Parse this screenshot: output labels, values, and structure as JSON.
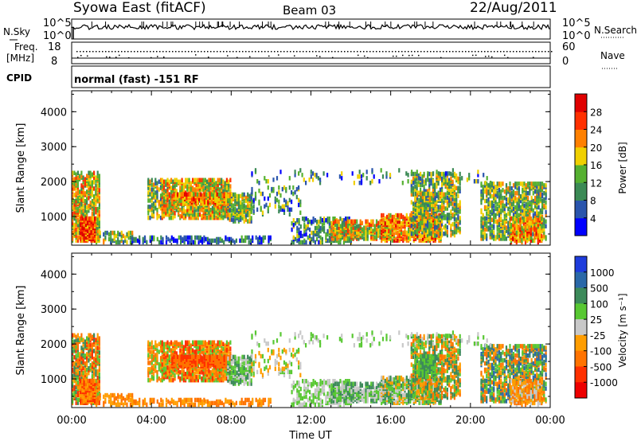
{
  "header": {
    "left": "Syowa East (fitACF)",
    "center": "Beam 03",
    "right": "22/Aug/2011"
  },
  "nsky_panel": {
    "left_label": "N.Sky",
    "tick_top": "10^5",
    "tick_bottom": "10^0",
    "right_label": "N.Search",
    "right_tick_top": "10^5",
    "right_tick_bottom": "10^0"
  },
  "freq_panel": {
    "left_label_1": "Freq.",
    "left_label_2": "[MHz]",
    "tick_top": "18",
    "tick_bottom": "8",
    "right_label": "Nave",
    "right_tick_top": "60",
    "right_tick_bottom": "0"
  },
  "cpid_panel": {
    "left_label": "CPID",
    "text": "normal (fast) -151 RF"
  },
  "chart_data": [
    {
      "type": "heatmap",
      "panel": "power",
      "ylabel": "Slant Range [km]",
      "xlabel": "",
      "ylim": [
        180,
        4600
      ],
      "y_ticks": [
        "1000",
        "2000",
        "3000",
        "4000"
      ],
      "x_ticks": [
        "00:00",
        "04:00",
        "08:00",
        "12:00",
        "16:00",
        "20:00",
        "00:00"
      ],
      "colorbar": {
        "label": "Power [dB]",
        "ticks": [
          "4",
          "8",
          "12",
          "16",
          "20",
          "24",
          "28"
        ],
        "colors": [
          "#0000ff",
          "#2a55ad",
          "#3b8a55",
          "#55b030",
          "#f0d000",
          "#ff8000",
          "#ff3000",
          "#e00000"
        ]
      }
    },
    {
      "type": "heatmap",
      "panel": "velocity",
      "ylabel": "Slant Range [km]",
      "xlabel": "Time UT",
      "ylim": [
        180,
        4600
      ],
      "y_ticks": [
        "1000",
        "2000",
        "3000",
        "4000"
      ],
      "x_ticks": [
        "00:00",
        "04:00",
        "08:00",
        "12:00",
        "16:00",
        "20:00",
        "00:00"
      ],
      "colorbar": {
        "label": "Velocity [m s⁻¹]",
        "ticks": [
          "1000",
          "500",
          "100",
          "25",
          "-25",
          "-100",
          "-500",
          "-1000"
        ],
        "colors": [
          "#1e3cdc",
          "#2a68a8",
          "#3c8a5a",
          "#58c832",
          "#c8c8c8",
          "#ff9d00",
          "#ff7300",
          "#ff3000",
          "#ee0000"
        ]
      }
    }
  ]
}
